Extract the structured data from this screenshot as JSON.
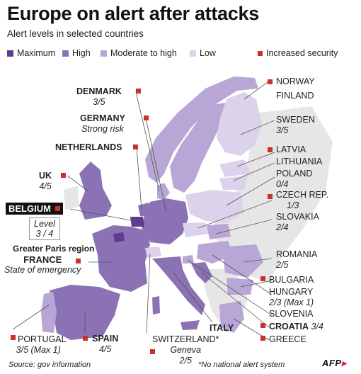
{
  "title": "Europe on alert after attacks",
  "subtitle": "Alert levels in selected countries",
  "colors": {
    "maximum": "#5b3d91",
    "high": "#8a72b5",
    "moderate_to_high": "#b8a6d6",
    "low": "#dcd2ec",
    "increased_security": "#c8322b",
    "no_data": "#e6e6e6"
  },
  "legend": {
    "maximum": "Maximum",
    "high": "High",
    "moderate_to_high": "Moderate to high",
    "low": "Low",
    "increased_security": "Increased security"
  },
  "countries": {
    "norway": {
      "name": "NORWAY"
    },
    "finland": {
      "name": "FINLAND"
    },
    "sweden": {
      "name": "SWEDEN",
      "level": "3/5"
    },
    "latvia": {
      "name": "LATVIA"
    },
    "lithuania": {
      "name": "LITHUANIA"
    },
    "poland": {
      "name": "POLAND",
      "level": "0/4"
    },
    "czech": {
      "name": "CZECH REP.",
      "level": "1/3"
    },
    "slovakia": {
      "name": "SLOVAKIA",
      "level": "2/4"
    },
    "romania": {
      "name": "ROMANIA",
      "level": "2/5"
    },
    "bulgaria": {
      "name": "BULGARIA"
    },
    "hungary": {
      "name": "HUNGARY",
      "level": "2/3 (Max 1)"
    },
    "slovenia": {
      "name": "SLOVENIA"
    },
    "croatia": {
      "name": "CROATIA",
      "level": "3/4"
    },
    "greece": {
      "name": "GREECE"
    },
    "denmark": {
      "name": "DENMARK",
      "level": "3/5"
    },
    "germany": {
      "name": "GERMANY",
      "level": "Strong risk"
    },
    "netherlands": {
      "name": "NETHERLANDS"
    },
    "uk": {
      "name": "UK",
      "level": "4/5"
    },
    "belgium": {
      "name": "BELGIUM",
      "level_label": "Level",
      "level": "3 / 4"
    },
    "paris": {
      "name": "Greater Paris region"
    },
    "france": {
      "name": "FRANCE",
      "level": "State of emergency"
    },
    "portugal": {
      "name": "PORTUGAL",
      "level": "3/5 (Max 1)"
    },
    "spain": {
      "name": "SPAIN",
      "level": "4/5"
    },
    "switzerland": {
      "name": "SWITZERLAND*",
      "city": "Geneva",
      "level": "2/5"
    },
    "italy": {
      "name": "ITALY"
    }
  },
  "source": "Source: gov information",
  "footnote": "*No national alert system",
  "logo": "AFP"
}
